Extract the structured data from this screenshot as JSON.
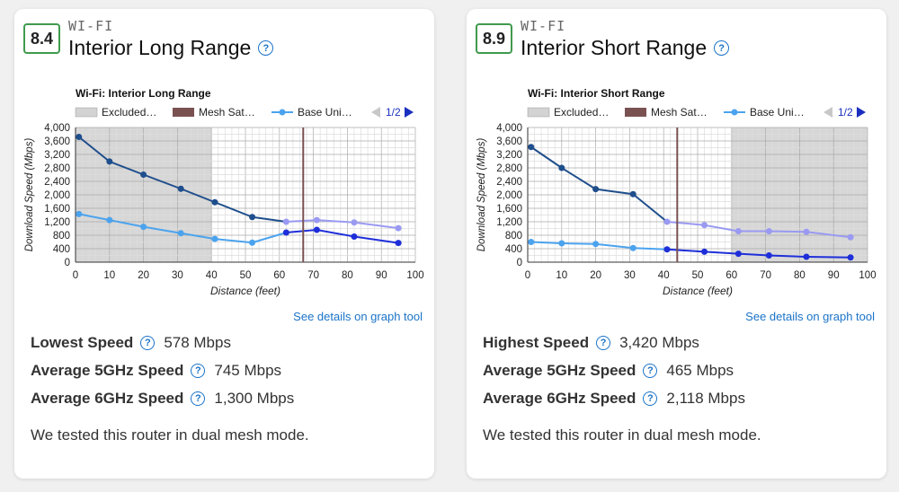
{
  "cards": [
    {
      "score": "8.4",
      "category": "WI-FI",
      "title": "Interior Long Range",
      "details_link": "See details on graph tool",
      "stats": [
        {
          "label": "Lowest Speed",
          "value": "578 Mbps"
        },
        {
          "label": "Average 5GHz Speed",
          "value": "745 Mbps"
        },
        {
          "label": "Average 6GHz Speed",
          "value": "1,300 Mbps"
        }
      ],
      "note": "We tested this router in dual mesh mode.",
      "help_icon": "?"
    },
    {
      "score": "8.9",
      "category": "WI-FI",
      "title": "Interior Short Range",
      "details_link": "See details on graph tool",
      "stats": [
        {
          "label": "Highest Speed",
          "value": "3,420 Mbps"
        },
        {
          "label": "Average 5GHz Speed",
          "value": "465 Mbps"
        },
        {
          "label": "Average 6GHz Speed",
          "value": "2,118 Mbps"
        }
      ],
      "note": "We tested this router in dual mesh mode.",
      "help_icon": "?"
    }
  ],
  "colors": {
    "score_border": "#3f9a4d",
    "link": "#1a73c8",
    "excluded": "#d3d3d3",
    "mesh": "#7a5151",
    "base_light": "#4ba3ee",
    "base_dark": "#1f4e8c",
    "sat_light": "#9a9af2",
    "sat_dark": "#1e2fd9"
  },
  "chart_data": [
    {
      "type": "line",
      "title": "Wi-Fi: Interior Long Range",
      "xlabel": "Distance (feet)",
      "ylabel": "Download Speed (Mbps)",
      "xlim": [
        0,
        100
      ],
      "ylim": [
        0,
        4000
      ],
      "x_ticks": [
        "0",
        "10",
        "20",
        "30",
        "40",
        "50",
        "60",
        "70",
        "80",
        "90",
        "100"
      ],
      "y_ticks": [
        "0",
        "400",
        "800",
        "1,200",
        "1,600",
        "2,000",
        "2,400",
        "2,800",
        "3,200",
        "3,600",
        "4,000"
      ],
      "grid": true,
      "legend_position": "top",
      "legend": [
        {
          "label": "Excluded…",
          "kind": "band"
        },
        {
          "label": "Mesh Sat…",
          "kind": "mesh"
        },
        {
          "label": "Base Uni…",
          "kind": "line"
        }
      ],
      "legend_page": "1/2",
      "excluded_range": [
        0,
        40
      ],
      "mesh_distance": 67,
      "series": [
        {
          "role": "base",
          "band": "6GHz",
          "x": [
            1,
            10,
            20,
            31,
            41,
            52
          ],
          "y": [
            3720,
            2990,
            2600,
            2180,
            1780,
            1340
          ]
        },
        {
          "role": "base",
          "band": "5GHz",
          "x": [
            1,
            10,
            20,
            31,
            41,
            52
          ],
          "y": [
            1430,
            1250,
            1050,
            860,
            690,
            580
          ]
        },
        {
          "role": "satellite",
          "band": "6GHz",
          "x": [
            62,
            71,
            82,
            95
          ],
          "y": [
            1200,
            1250,
            1180,
            1010
          ]
        },
        {
          "role": "satellite",
          "band": "5GHz",
          "x": [
            62,
            71,
            82,
            95
          ],
          "y": [
            880,
            960,
            760,
            570
          ]
        }
      ]
    },
    {
      "type": "line",
      "title": "Wi-Fi: Interior Short Range",
      "xlabel": "Distance (feet)",
      "ylabel": "Download Speed (Mbps)",
      "xlim": [
        0,
        100
      ],
      "ylim": [
        0,
        4000
      ],
      "x_ticks": [
        "0",
        "10",
        "20",
        "30",
        "40",
        "50",
        "60",
        "70",
        "80",
        "90",
        "100"
      ],
      "y_ticks": [
        "0",
        "400",
        "800",
        "1,200",
        "1,600",
        "2,000",
        "2,400",
        "2,800",
        "3,200",
        "3,600",
        "4,000"
      ],
      "grid": true,
      "legend_position": "top",
      "legend": [
        {
          "label": "Excluded…",
          "kind": "band"
        },
        {
          "label": "Mesh Sat…",
          "kind": "mesh"
        },
        {
          "label": "Base Uni…",
          "kind": "line"
        }
      ],
      "legend_page": "1/2",
      "excluded_range": [
        60,
        100
      ],
      "mesh_distance": 44,
      "series": [
        {
          "role": "base",
          "band": "6GHz",
          "x": [
            1,
            10,
            20,
            31
          ],
          "y": [
            3420,
            2800,
            2170,
            2020
          ]
        },
        {
          "role": "base",
          "band": "5GHz",
          "x": [
            1,
            10,
            20,
            31
          ],
          "y": [
            600,
            560,
            540,
            420
          ]
        },
        {
          "role": "satellite",
          "band": "6GHz",
          "x": [
            41,
            52,
            62,
            71,
            82,
            95
          ],
          "y": [
            1200,
            1100,
            920,
            920,
            900,
            740
          ]
        },
        {
          "role": "satellite",
          "band": "5GHz",
          "x": [
            41,
            52,
            62,
            71,
            82,
            95
          ],
          "y": [
            380,
            310,
            250,
            200,
            160,
            140
          ]
        }
      ]
    }
  ]
}
